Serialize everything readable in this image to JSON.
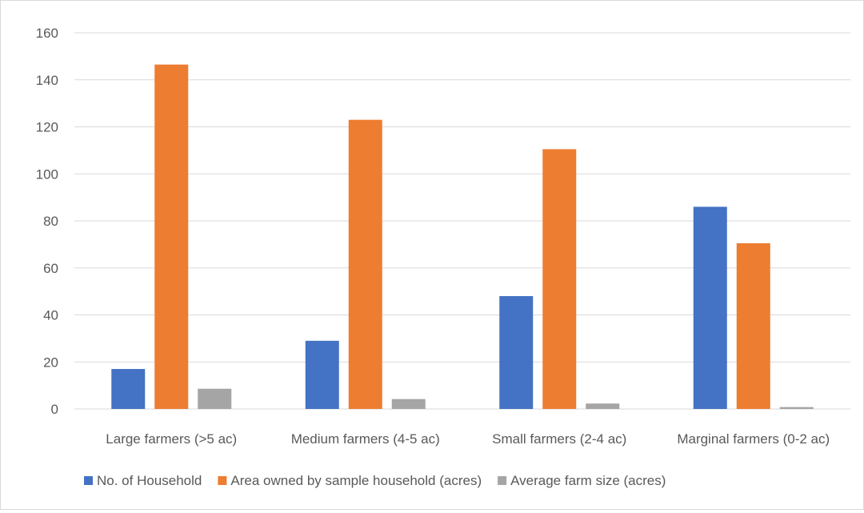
{
  "chart_data": {
    "type": "bar",
    "title": "",
    "xlabel": "",
    "ylabel": "",
    "ylim": [
      0,
      160
    ],
    "yticks": [
      0,
      20,
      40,
      60,
      80,
      100,
      120,
      140,
      160
    ],
    "grid": true,
    "legend_position": "bottom",
    "categories": [
      "Large farmers (>5 ac)",
      "Medium farmers (4-5 ac)",
      "Small farmers (2-4 ac)",
      "Marginal farmers (0-2 ac)"
    ],
    "series": [
      {
        "name": "No. of Household",
        "color": "#4472C4",
        "values": [
          17,
          29,
          48,
          86
        ]
      },
      {
        "name": "Area owned by sample household (acres)",
        "color": "#ED7D31",
        "values": [
          146.5,
          123,
          110.5,
          70.5
        ]
      },
      {
        "name": "Average farm size (acres)",
        "color": "#A5A5A5",
        "values": [
          8.6,
          4.2,
          2.3,
          0.8
        ]
      }
    ]
  }
}
